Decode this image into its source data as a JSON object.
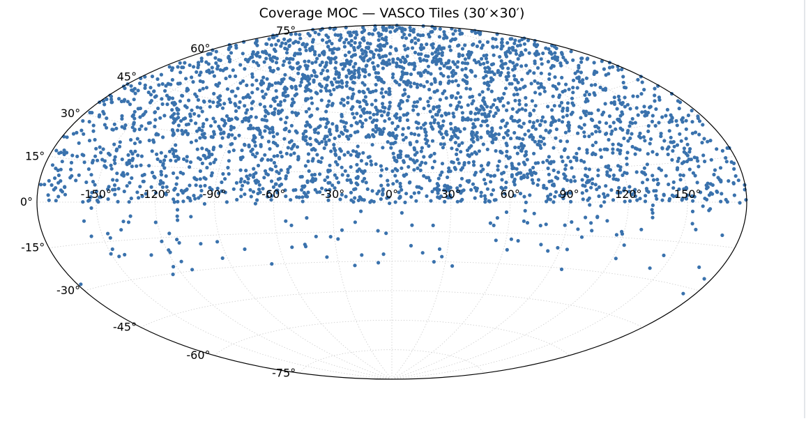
{
  "colors": {
    "point": "#3a72ad",
    "grid": "#cccccc",
    "outline": "#000000",
    "background": "#ffffff"
  },
  "chart_data": {
    "type": "scatter",
    "projection": "aitoff",
    "title": "Coverage MOC — VASCO Tiles (30′×30′)",
    "xlabel": "",
    "ylabel": "",
    "grid": true,
    "xlim": [
      -180,
      180
    ],
    "ylim": [
      -90,
      90
    ],
    "x_ticks": [
      -150,
      -120,
      -90,
      -60,
      -30,
      0,
      30,
      60,
      90,
      120,
      150
    ],
    "x_tick_labels": [
      "-150°",
      "-120°",
      "-90°",
      "-60°",
      "-30°",
      "0°",
      "30°",
      "60°",
      "90°",
      "120°",
      "150°"
    ],
    "y_ticks": [
      75,
      60,
      45,
      30,
      15,
      0,
      -15,
      -30,
      -45,
      -60,
      -75
    ],
    "y_tick_labels": [
      "75°",
      "60°",
      "45°",
      "30°",
      "15°",
      "0°",
      "-15°",
      "-30°",
      "-45°",
      "-60°",
      "-75°"
    ],
    "series": [
      {
        "name": "VASCO tiles",
        "point_count": 3200,
        "density_by_dec": [
          {
            "dec_range": [
              60,
              90
            ],
            "relative_density": 1.6
          },
          {
            "dec_range": [
              30,
              60
            ],
            "relative_density": 1.0
          },
          {
            "dec_range": [
              0,
              30
            ],
            "relative_density": 0.75
          },
          {
            "dec_range": [
              -15,
              0
            ],
            "relative_density": 0.08
          },
          {
            "dec_range": [
              -33,
              -15
            ],
            "relative_density": 0.06
          },
          {
            "dec_range": [
              -90,
              -33
            ],
            "relative_density": 0.0
          }
        ]
      }
    ]
  }
}
